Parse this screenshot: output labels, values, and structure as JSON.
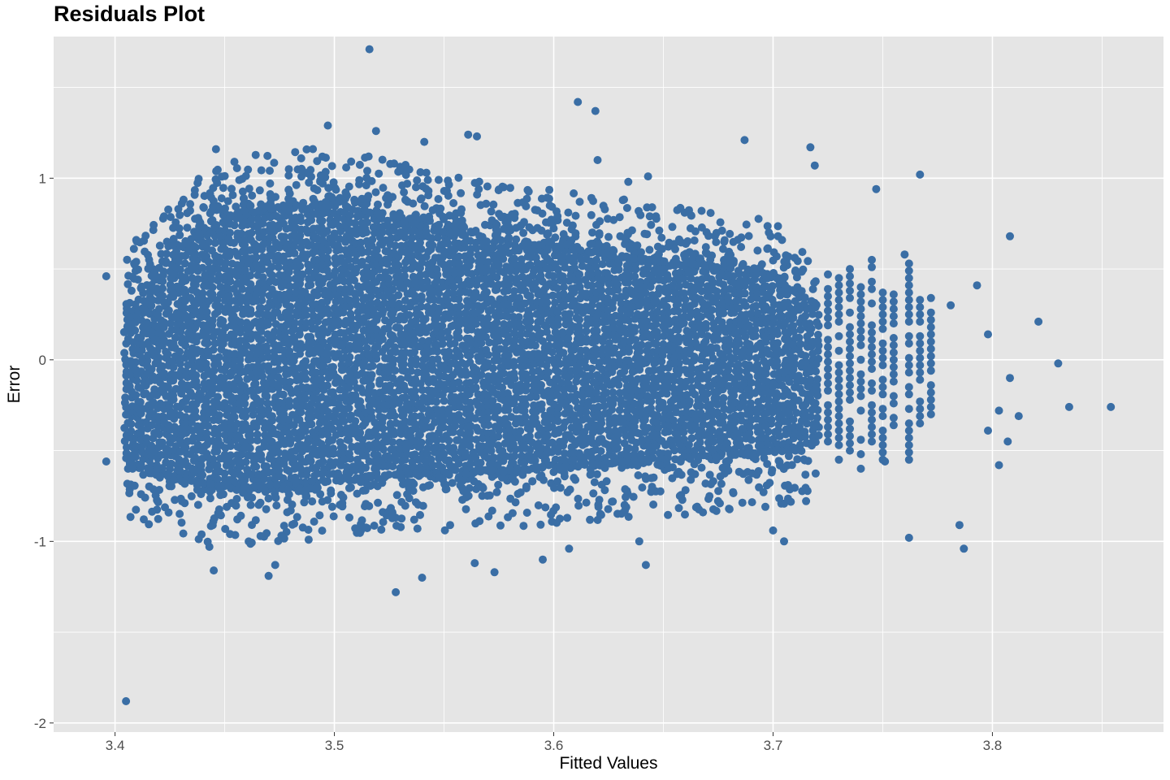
{
  "chart_data": {
    "type": "scatter",
    "title": "Residuals Plot",
    "xlabel": "Fitted Values",
    "ylabel": "Error",
    "xlim": [
      3.372,
      3.878
    ],
    "ylim": [
      -2.05,
      1.78
    ],
    "x_ticks": [
      3.4,
      3.5,
      3.6,
      3.7,
      3.8
    ],
    "x_tick_labels": [
      "3.4",
      "3.5",
      "3.6",
      "3.7",
      "3.8"
    ],
    "y_ticks": [
      -2,
      -1,
      0,
      1
    ],
    "y_tick_labels": [
      "-2",
      "-1",
      "0",
      "1"
    ],
    "grid": true,
    "point_color": "#3A6EA5",
    "panel_background": "#E5E5E5",
    "grid_color": "#FFFFFF",
    "core_cloud": [
      {
        "x": 3.405,
        "ymin": -0.55,
        "ymax": 0.3
      },
      {
        "x": 3.42,
        "ymin": -0.62,
        "ymax": 0.5
      },
      {
        "x": 3.44,
        "ymin": -0.68,
        "ymax": 0.7
      },
      {
        "x": 3.46,
        "ymin": -0.7,
        "ymax": 0.8
      },
      {
        "x": 3.48,
        "ymin": -0.68,
        "ymax": 0.85
      },
      {
        "x": 3.5,
        "ymin": -0.66,
        "ymax": 0.85
      },
      {
        "x": 3.52,
        "ymin": -0.63,
        "ymax": 0.8
      },
      {
        "x": 3.55,
        "ymin": -0.62,
        "ymax": 0.7
      },
      {
        "x": 3.58,
        "ymin": -0.6,
        "ymax": 0.65
      },
      {
        "x": 3.61,
        "ymin": -0.58,
        "ymax": 0.6
      },
      {
        "x": 3.64,
        "ymin": -0.55,
        "ymax": 0.55
      },
      {
        "x": 3.67,
        "ymin": -0.53,
        "ymax": 0.52
      },
      {
        "x": 3.7,
        "ymin": -0.5,
        "ymax": 0.45
      },
      {
        "x": 3.72,
        "ymin": -0.45,
        "ymax": 0.3
      }
    ],
    "fringe_columns": [
      {
        "x": 3.725,
        "ymin": -0.45,
        "ymax": 0.5
      },
      {
        "x": 3.73,
        "ymin": -0.55,
        "ymax": 0.45
      },
      {
        "x": 3.735,
        "ymin": -0.5,
        "ymax": 0.5
      },
      {
        "x": 3.74,
        "ymin": -0.6,
        "ymax": 0.4
      },
      {
        "x": 3.745,
        "ymin": -0.45,
        "ymax": 0.55
      },
      {
        "x": 3.75,
        "ymin": -0.55,
        "ymax": 0.4
      },
      {
        "x": 3.755,
        "ymin": -0.4,
        "ymax": 0.45
      },
      {
        "x": 3.762,
        "ymin": -0.55,
        "ymax": 0.55
      },
      {
        "x": 3.767,
        "ymin": -0.35,
        "ymax": 0.4
      },
      {
        "x": 3.772,
        "ymin": -0.3,
        "ymax": 0.35
      }
    ],
    "outliers": [
      {
        "x": 3.405,
        "y": -1.88
      },
      {
        "x": 3.516,
        "y": 1.71
      },
      {
        "x": 3.611,
        "y": 1.42
      },
      {
        "x": 3.619,
        "y": 1.37
      },
      {
        "x": 3.497,
        "y": 1.29
      },
      {
        "x": 3.519,
        "y": 1.26
      },
      {
        "x": 3.561,
        "y": 1.24
      },
      {
        "x": 3.565,
        "y": 1.23
      },
      {
        "x": 3.541,
        "y": 1.2
      },
      {
        "x": 3.687,
        "y": 1.21
      },
      {
        "x": 3.717,
        "y": 1.17
      },
      {
        "x": 3.446,
        "y": 1.16
      },
      {
        "x": 3.62,
        "y": 1.1
      },
      {
        "x": 3.719,
        "y": 1.07
      },
      {
        "x": 3.767,
        "y": 1.02
      },
      {
        "x": 3.634,
        "y": 0.98
      },
      {
        "x": 3.643,
        "y": 1.01
      },
      {
        "x": 3.747,
        "y": 0.94
      },
      {
        "x": 3.808,
        "y": 0.68
      },
      {
        "x": 3.821,
        "y": 0.21
      },
      {
        "x": 3.83,
        "y": -0.02
      },
      {
        "x": 3.835,
        "y": -0.26
      },
      {
        "x": 3.854,
        "y": -0.26
      },
      {
        "x": 3.808,
        "y": -0.1
      },
      {
        "x": 3.812,
        "y": -0.31
      },
      {
        "x": 3.803,
        "y": -0.28
      },
      {
        "x": 3.798,
        "y": 0.14
      },
      {
        "x": 3.793,
        "y": 0.41
      },
      {
        "x": 3.798,
        "y": -0.39
      },
      {
        "x": 3.807,
        "y": -0.45
      },
      {
        "x": 3.803,
        "y": -0.58
      },
      {
        "x": 3.787,
        "y": -1.04
      },
      {
        "x": 3.762,
        "y": -0.98
      },
      {
        "x": 3.785,
        "y": -0.91
      },
      {
        "x": 3.396,
        "y": 0.46
      },
      {
        "x": 3.396,
        "y": -0.56
      },
      {
        "x": 3.443,
        "y": -1.03
      },
      {
        "x": 3.445,
        "y": -1.16
      },
      {
        "x": 3.47,
        "y": -1.19
      },
      {
        "x": 3.473,
        "y": -1.13
      },
      {
        "x": 3.528,
        "y": -1.28
      },
      {
        "x": 3.54,
        "y": -1.2
      },
      {
        "x": 3.564,
        "y": -1.12
      },
      {
        "x": 3.573,
        "y": -1.17
      },
      {
        "x": 3.595,
        "y": -1.1
      },
      {
        "x": 3.607,
        "y": -1.04
      },
      {
        "x": 3.642,
        "y": -1.13
      },
      {
        "x": 3.639,
        "y": -1.0
      },
      {
        "x": 3.7,
        "y": -0.94
      },
      {
        "x": 3.705,
        "y": -1.0
      },
      {
        "x": 3.751,
        "y": -0.56
      },
      {
        "x": 3.76,
        "y": 0.58
      },
      {
        "x": 3.781,
        "y": 0.3
      }
    ]
  }
}
